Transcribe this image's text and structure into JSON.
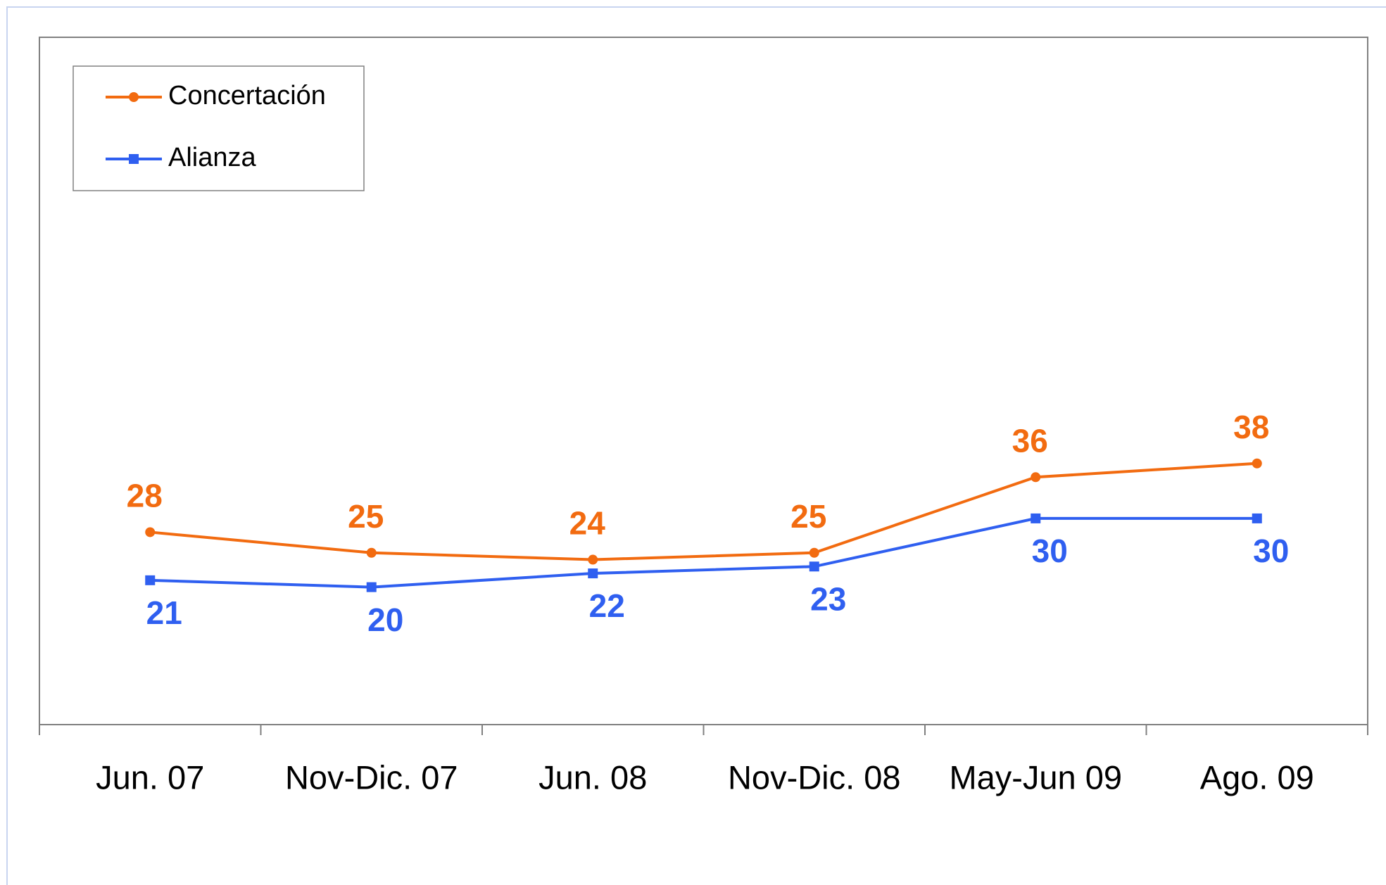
{
  "chart_data": {
    "type": "line",
    "categories": [
      "Jun. 07",
      "Nov-Dic. 07",
      "Jun. 08",
      "Nov-Dic. 08",
      "May-Jun 09",
      "Ago. 09"
    ],
    "series": [
      {
        "name": "Concertación",
        "color": "#f26b10",
        "marker": "circle",
        "values": [
          28,
          25,
          24,
          25,
          36,
          38
        ]
      },
      {
        "name": "Alianza",
        "color": "#2f5ff0",
        "marker": "square",
        "values": [
          21,
          20,
          22,
          23,
          30,
          30
        ]
      }
    ],
    "ylim": [
      0,
      100
    ],
    "legend": "top-left"
  }
}
